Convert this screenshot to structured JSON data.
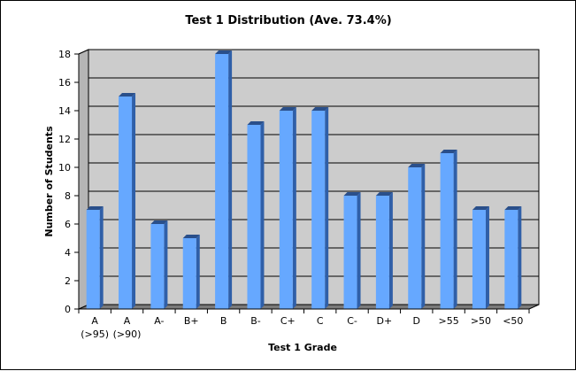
{
  "chart_data": {
    "type": "bar",
    "title": "Test 1 Distribution (Ave. 73.4%)",
    "xlabel": "Test 1 Grade",
    "ylabel": "Number of Students",
    "categories": [
      [
        "A",
        "(>95)"
      ],
      [
        "A",
        "(>90)"
      ],
      [
        "A-"
      ],
      [
        "B+"
      ],
      [
        "B"
      ],
      [
        "B-"
      ],
      [
        "C+"
      ],
      [
        "C"
      ],
      [
        "C-"
      ],
      [
        "D+"
      ],
      [
        "D"
      ],
      [
        ">55"
      ],
      [
        ">50"
      ],
      [
        "<50"
      ]
    ],
    "values": [
      7,
      15,
      6,
      5,
      18,
      13,
      14,
      14,
      8,
      8,
      10,
      11,
      7,
      7
    ],
    "ylim": [
      0,
      18
    ],
    "yticks": [
      0,
      2,
      4,
      6,
      8,
      10,
      12,
      14,
      16,
      18
    ],
    "grid": true,
    "bar_color": "#66a8ff",
    "bar_side_color": "#2f5fa8",
    "bar_top_color": "#2a4f8a",
    "plot_background": "#cccccc",
    "floor_color": "#7a7a7a"
  }
}
